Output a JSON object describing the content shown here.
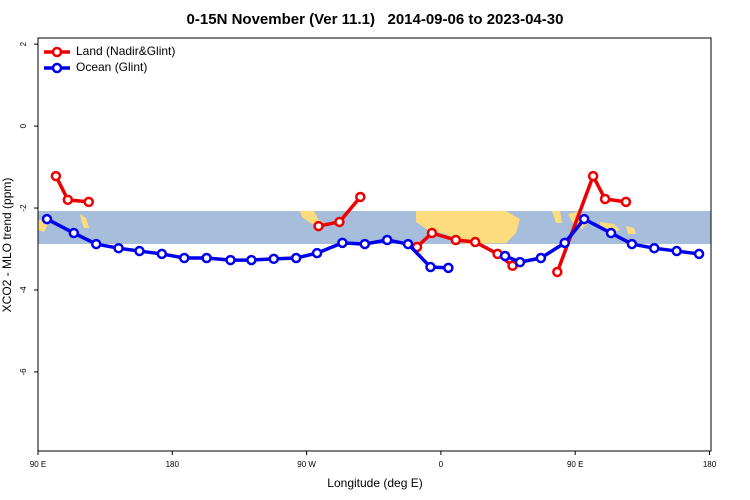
{
  "chart_data": {
    "type": "line",
    "title": "0-15N November (Ver 11.1)   2014-09-06 to 2023-04-30",
    "x_label": "Longitude (deg E)",
    "y_label": "XCO2 - MLO trend (ppm)",
    "xlim": [
      90,
      541
    ],
    "xticks": [
      {
        "value": 90,
        "label": "90 E"
      },
      180,
      {
        "value": 270,
        "label": "90 W"
      },
      {
        "value": 360,
        "label": "0"
      },
      {
        "value": 450,
        "label": "90 E"
      },
      {
        "value": 540,
        "label": "180"
      }
    ],
    "ylim": [
      -7.93,
      2.15
    ],
    "yticks": [
      -6,
      -4,
      -2,
      0,
      2
    ],
    "legend": "top-left",
    "series": [
      {
        "name": "Land (Nadir&Glint)",
        "color": "#ee0000",
        "x": [
          102,
          110,
          124,
          null,
          278,
          292,
          306,
          null,
          344,
          354,
          370,
          383,
          398,
          408,
          null,
          438,
          462,
          470,
          484
        ],
        "values": [
          -1.22,
          -1.8,
          -1.85,
          null,
          -2.44,
          -2.34,
          -1.73,
          null,
          -2.95,
          -2.61,
          -2.78,
          -2.83,
          -3.12,
          -3.41,
          null,
          -3.56,
          -1.22,
          -1.78,
          -1.85
        ]
      },
      {
        "name": "Ocean (Glint)",
        "color": "#0000ee",
        "x": [
          96,
          114,
          129,
          144,
          158,
          173,
          188,
          203,
          219,
          233,
          248,
          263,
          277,
          294,
          309,
          324,
          338,
          353,
          365,
          null,
          403,
          413,
          427,
          443,
          456,
          474,
          488,
          503,
          518,
          533
        ],
        "values": [
          -2.27,
          -2.61,
          -2.88,
          -2.98,
          -3.05,
          -3.12,
          -3.22,
          -3.22,
          -3.27,
          -3.27,
          -3.24,
          -3.22,
          -3.1,
          -2.85,
          -2.88,
          -2.78,
          -2.88,
          -3.44,
          -3.46,
          null,
          -3.17,
          -3.32,
          -3.22,
          -2.85,
          -2.27,
          -2.61,
          -2.88,
          -2.98,
          -3.05,
          -3.12
        ]
      }
    ]
  }
}
